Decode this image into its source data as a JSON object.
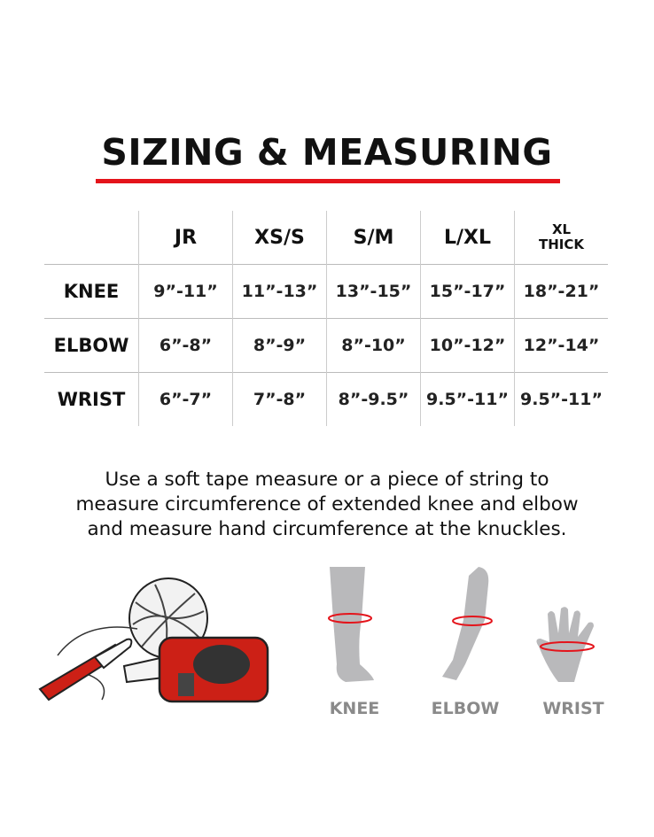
{
  "title": "SIZING & MEASURING",
  "colors": {
    "accent": "#e4141b",
    "figure": "#b9b9bb",
    "label": "#8a8a8a"
  },
  "table": {
    "columns": [
      "JR",
      "XS/S",
      "S/M",
      "L/XL"
    ],
    "last_column": {
      "line1": "XL",
      "line2": "THICK"
    },
    "rows": [
      {
        "label": "KNEE",
        "values": [
          "9”-11”",
          "11”-13”",
          "13”-15”",
          "15”-17”",
          "18”-21”"
        ]
      },
      {
        "label": "ELBOW",
        "values": [
          "6”-8”",
          "8”-9”",
          "8”-10”",
          "10”-12”",
          "12”-14”"
        ]
      },
      {
        "label": "WRIST",
        "values": [
          "6”-7”",
          "7”-8”",
          "8”-9.5”",
          "9.5”-11”",
          "9.5”-11”"
        ]
      }
    ]
  },
  "instructions": [
    "Use a soft tape measure or a piece of string to",
    "measure circumference of extended knee and elbow",
    "and measure hand circumference at the knuckles."
  ],
  "tools_illustration": {
    "icons": [
      "string-ball-icon",
      "marker-icon",
      "tape-measure-icon"
    ]
  },
  "figures": [
    {
      "label": "KNEE"
    },
    {
      "label": "ELBOW"
    },
    {
      "label": "WRIST"
    }
  ]
}
